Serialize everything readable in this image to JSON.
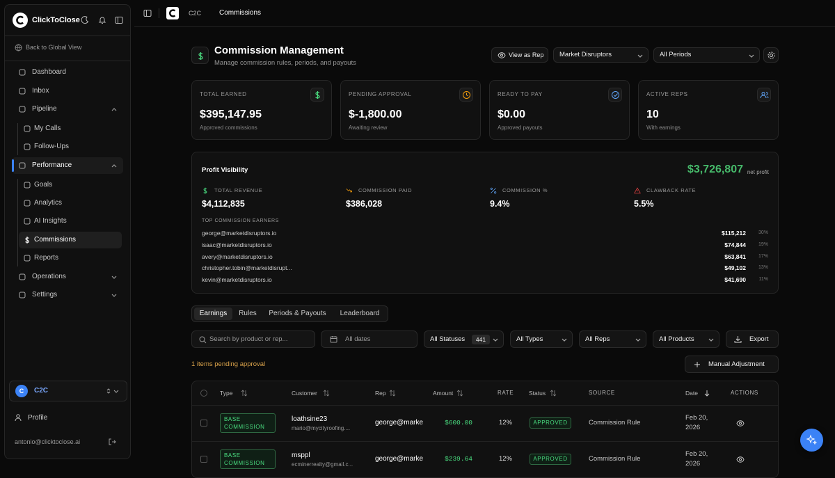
{
  "sidebar": {
    "brand": "ClickToClose",
    "back": "Back to Global View",
    "nav": [
      "Dashboard",
      "Inbox",
      "Pipeline",
      "My Calls",
      "Follow-Ups",
      "Performance",
      "Goals",
      "Analytics",
      "AI Insights",
      "Commissions",
      "Reports",
      "Operations",
      "Settings"
    ],
    "workspace": {
      "initial": "C",
      "name": "C2C"
    },
    "profile": "Profile",
    "email": "antonio@clicktoclose.ai"
  },
  "topbar": {
    "breadcrumb": [
      "C2C",
      "Commissions"
    ]
  },
  "header": {
    "title": "Commission Management",
    "subtitle": "Manage commission rules, periods, and payouts",
    "view_as_rep": "View as Rep",
    "team_select": "Market Disruptors",
    "period_select": "All Periods"
  },
  "stats": [
    {
      "label": "TOTAL EARNED",
      "value": "$395,147.95",
      "note": "Approved commissions"
    },
    {
      "label": "PENDING APPROVAL",
      "value": "$-1,800.00",
      "note": "Awaiting review"
    },
    {
      "label": "READY TO PAY",
      "value": "$0.00",
      "note": "Approved payouts"
    },
    {
      "label": "ACTIVE REPS",
      "value": "10",
      "note": "With earnings"
    }
  ],
  "profit": {
    "title": "Profit Visibility",
    "net_value": "$3,726,807",
    "net_label": "net profit",
    "metrics": [
      {
        "label": "TOTAL REVENUE",
        "value": "$4,112,835"
      },
      {
        "label": "COMMISSION PAID",
        "value": "$386,028"
      },
      {
        "label": "COMMISSION %",
        "value": "9.4%"
      },
      {
        "label": "CLAWBACK RATE",
        "value": "5.5%"
      }
    ],
    "earners_title": "TOP COMMISSION EARNERS",
    "earners": [
      {
        "email": "george@marketdisruptors.io",
        "amount": "$115,212",
        "share": "30%"
      },
      {
        "email": "isaac@marketdisruptors.io",
        "amount": "$74,844",
        "share": "19%"
      },
      {
        "email": "avery@marketdisruptors.io",
        "amount": "$63,841",
        "share": "17%"
      },
      {
        "email": "christopher.tobin@marketdisrupt...",
        "amount": "$49,102",
        "share": "13%"
      },
      {
        "email": "kevin@marketdisruptors.io",
        "amount": "$41,690",
        "share": "11%"
      }
    ]
  },
  "tabs": [
    "Earnings",
    "Rules",
    "Periods & Payouts",
    "Leaderboard"
  ],
  "filters": {
    "search": "Search by product or rep...",
    "dates": "All dates",
    "status": "All Statuses",
    "status_count": "441",
    "types": "All Types",
    "reps": "All Reps",
    "products": "All Products",
    "export": "Export"
  },
  "pending": "1 items pending approval",
  "manual_adjustment": "Manual Adjustment",
  "table": {
    "columns": [
      "Type",
      "Customer",
      "Rep",
      "Amount",
      "RATE",
      "Status",
      "SOURCE",
      "Date",
      "ACTIONS"
    ],
    "rows": [
      [
        "BASE COMMISSION",
        "loathsine23",
        "mario@mycityroofing....",
        "george@marke",
        "$600.00",
        "12%",
        "APPROVED",
        "Commission Rule",
        "Feb 20, 2026"
      ],
      [
        "BASE COMMISSION",
        "msppl",
        "ecminerrealty@gmail.c...",
        "george@marke",
        "$239.64",
        "12%",
        "APPROVED",
        "Commission Rule",
        "Feb 20, 2026"
      ]
    ]
  }
}
